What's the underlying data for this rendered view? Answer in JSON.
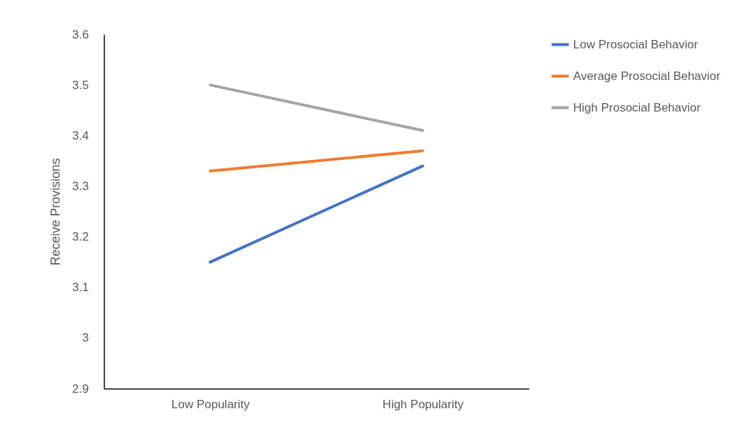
{
  "chart_data": {
    "type": "line",
    "ylabel": "Receive Provisions",
    "categories": [
      "Low Popularity",
      "High Popularity"
    ],
    "series": [
      {
        "name": "Low Prosocial Behavior",
        "color": "#4472c4",
        "values": [
          3.15,
          3.34
        ]
      },
      {
        "name": "Average Prosocial Behavior",
        "color": "#ed7d31",
        "values": [
          3.33,
          3.37
        ]
      },
      {
        "name": "High Prosocial Behavior",
        "color": "#a5a5a5",
        "values": [
          3.5,
          3.41
        ]
      }
    ],
    "ylim": [
      2.9,
      3.6
    ],
    "yticks": [
      2.9,
      3,
      3.1,
      3.2,
      3.3,
      3.4,
      3.5,
      3.6
    ],
    "grid": false,
    "legend": "right",
    "marker": "none",
    "line_style": "solid"
  }
}
